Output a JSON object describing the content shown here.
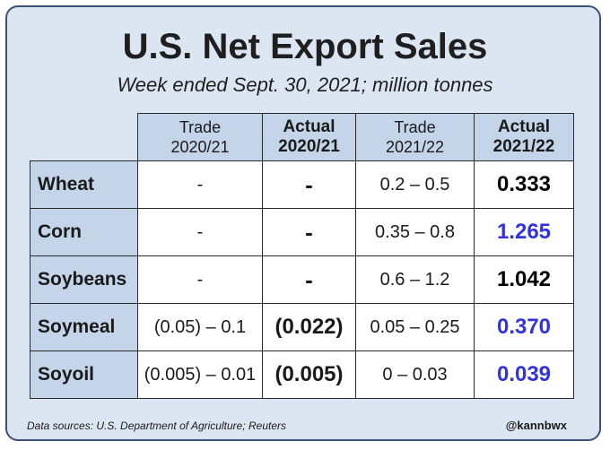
{
  "title": "U.S. Net Export Sales",
  "subtitle": "Week ended Sept. 30, 2021; million tonnes",
  "columns": [
    {
      "line1": "Trade",
      "line2": "2020/21"
    },
    {
      "line1": "Actual",
      "line2": "2020/21"
    },
    {
      "line1": "Trade",
      "line2": "2021/22"
    },
    {
      "line1": "Actual",
      "line2": "2021/22"
    }
  ],
  "rows": [
    {
      "label": "Wheat",
      "trade_2020_21": "-",
      "actual_2020_21": "-",
      "trade_2021_22": "0.2 – 0.5",
      "actual_2021_22": "0.333",
      "actual_2021_22_color": "#000000"
    },
    {
      "label": "Corn",
      "trade_2020_21": "-",
      "actual_2020_21": "-",
      "trade_2021_22": "0.35 – 0.8",
      "actual_2021_22": "1.265",
      "actual_2021_22_color": "#3333dd"
    },
    {
      "label": "Soybeans",
      "trade_2020_21": "-",
      "actual_2020_21": "-",
      "trade_2021_22": "0.6 – 1.2",
      "actual_2021_22": "1.042",
      "actual_2021_22_color": "#000000"
    },
    {
      "label": "Soymeal",
      "trade_2020_21": "(0.05) – 0.1",
      "actual_2020_21": "(0.022)",
      "trade_2021_22": "0.05 – 0.25",
      "actual_2021_22": "0.370",
      "actual_2021_22_color": "#3333dd"
    },
    {
      "label": "Soyoil",
      "trade_2020_21": "(0.005) – 0.01",
      "actual_2020_21": "(0.005)",
      "trade_2021_22": "0 – 0.03",
      "actual_2021_22": "0.039",
      "actual_2021_22_color": "#3333dd"
    }
  ],
  "footer": {
    "source": "Data sources: U.S. Department of Agriculture; Reuters",
    "handle": "@kannbwx"
  }
}
